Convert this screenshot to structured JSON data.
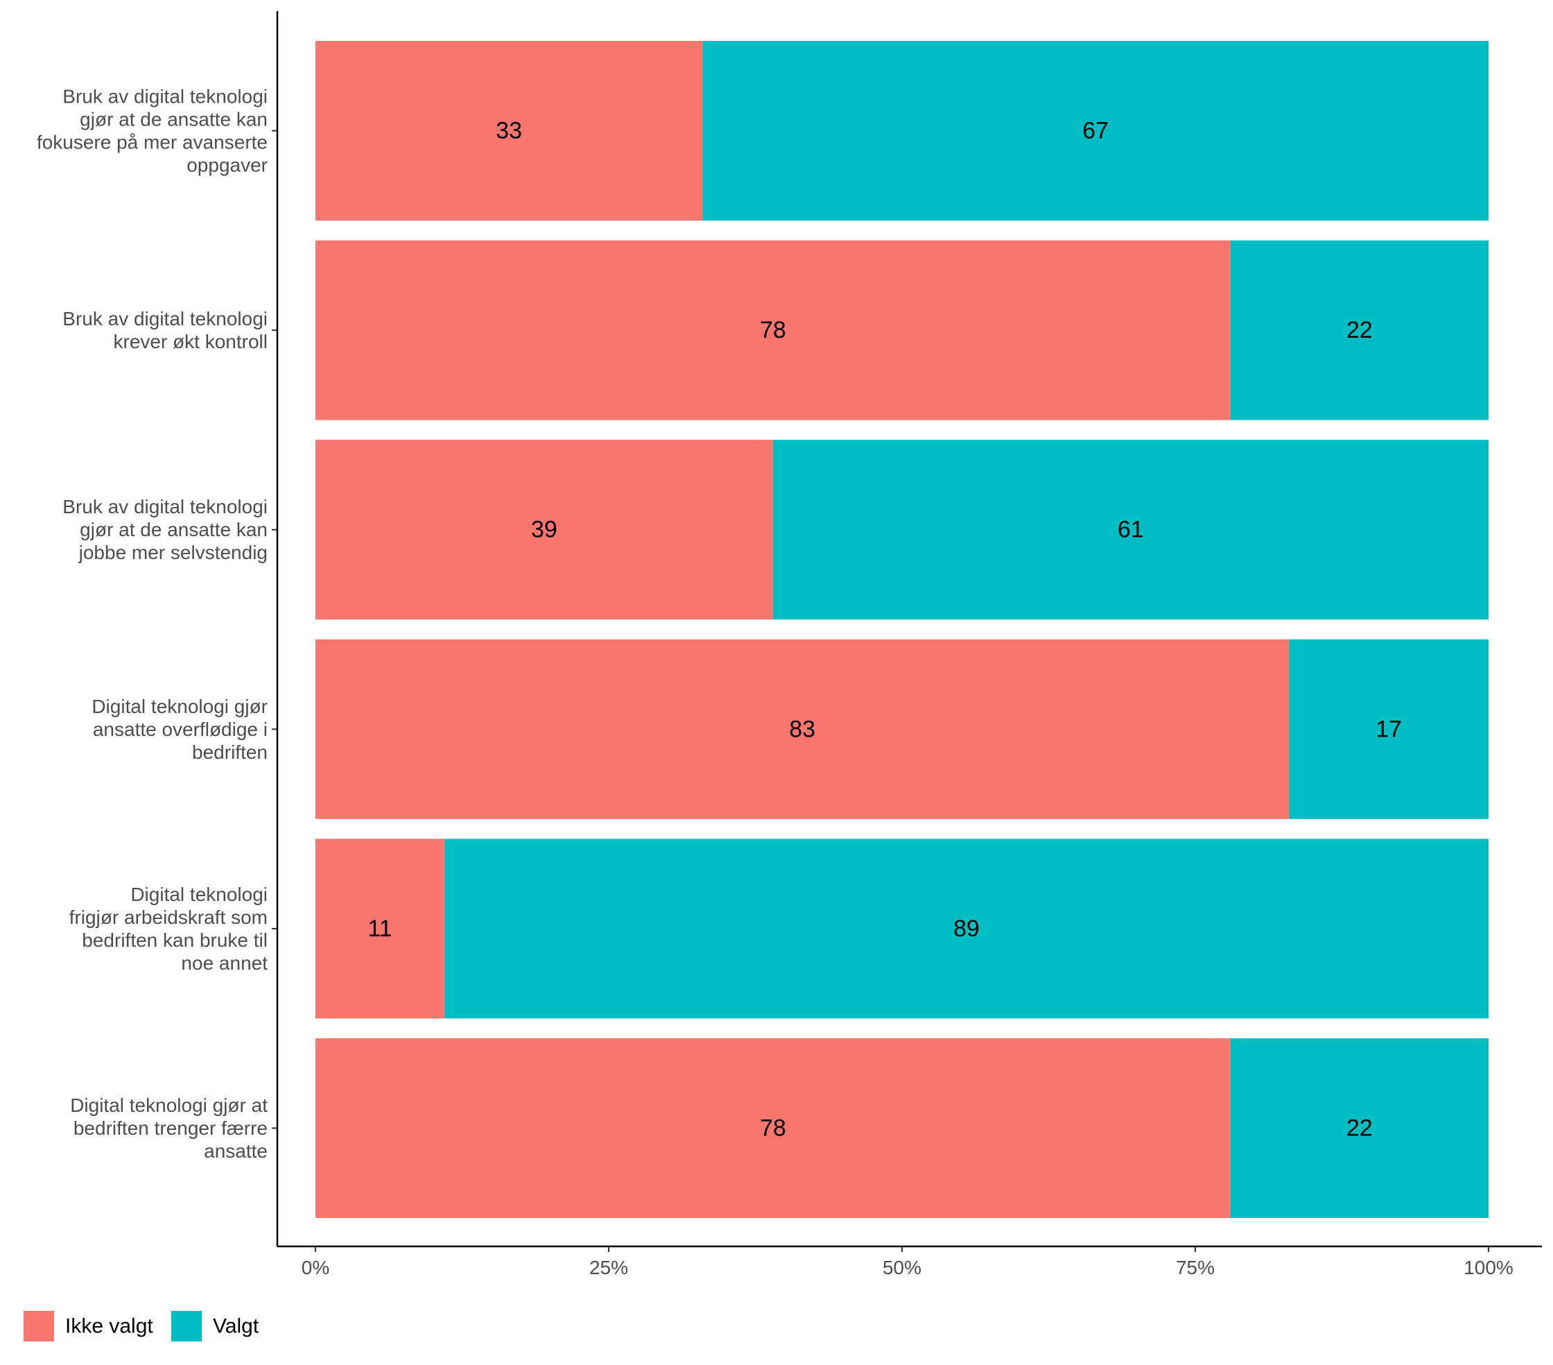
{
  "chart_data": {
    "type": "bar",
    "orientation": "horizontal",
    "stacked": true,
    "categories": [
      [
        "Bruk av digital teknologi",
        "gjør at de ansatte kan",
        "fokusere på mer avanserte",
        "oppgaver"
      ],
      [
        "Bruk av digital teknologi",
        "krever økt kontroll"
      ],
      [
        "Bruk av digital teknologi",
        "gjør at de ansatte kan",
        "jobbe mer selvstendig"
      ],
      [
        "Digital teknologi gjør",
        "ansatte overflødige i",
        "bedriften"
      ],
      [
        "Digital teknologi",
        "frigjør arbeidskraft som",
        "bedriften kan bruke til",
        "noe annet"
      ],
      [
        "Digital teknologi gjør at",
        "bedriften trenger færre",
        "ansatte"
      ]
    ],
    "series": [
      {
        "name": "Ikke valgt",
        "color": "#F8766D",
        "values": [
          33,
          78,
          39,
          83,
          11,
          78
        ]
      },
      {
        "name": "Valgt",
        "color": "#00BFC4",
        "values": [
          67,
          22,
          61,
          17,
          89,
          22
        ]
      }
    ],
    "xlim": [
      0,
      100
    ],
    "x_ticks": [
      0,
      25,
      50,
      75,
      100
    ],
    "x_tick_labels": [
      "0%",
      "25%",
      "50%",
      "75%",
      "100%"
    ],
    "title": "",
    "xlabel": "",
    "ylabel": "",
    "grid": false,
    "legend_position": "bottom-left"
  }
}
